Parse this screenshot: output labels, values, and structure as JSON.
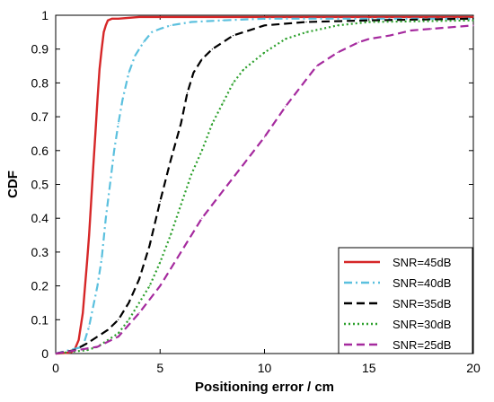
{
  "chart_data": {
    "type": "line",
    "title": "",
    "xlabel": "Positioning error / cm",
    "ylabel": "CDF",
    "xlim": [
      0,
      20
    ],
    "ylim": [
      0,
      1
    ],
    "xticks": [
      0,
      5,
      10,
      15,
      20
    ],
    "yticks": [
      0,
      0.1,
      0.2,
      0.3,
      0.4,
      0.5,
      0.6,
      0.7,
      0.8,
      0.9,
      1
    ],
    "grid": false,
    "legend_position": "bottom-right",
    "series": [
      {
        "name": "SNR=45dB",
        "color": "#d62728",
        "dash": "solid",
        "x": [
          0,
          0.7,
          0.9,
          1.1,
          1.3,
          1.5,
          1.6,
          1.7,
          1.8,
          1.9,
          2.0,
          2.1,
          2.2,
          2.3,
          2.4,
          2.5,
          2.7,
          3.0,
          4.0,
          5.0,
          20
        ],
        "y": [
          0,
          0.003,
          0.01,
          0.04,
          0.12,
          0.27,
          0.35,
          0.45,
          0.55,
          0.65,
          0.75,
          0.84,
          0.9,
          0.95,
          0.97,
          0.985,
          0.99,
          0.99,
          0.995,
          0.995,
          0.995
        ]
      },
      {
        "name": "SNR=40dB",
        "color": "#5bc0de",
        "dash": "dashdot",
        "x": [
          0,
          1.3,
          1.6,
          2.0,
          2.2,
          2.4,
          2.6,
          2.8,
          3.0,
          3.2,
          3.5,
          3.8,
          4.2,
          4.6,
          5.0,
          5.5,
          6.5,
          8.0,
          10.0,
          15.0,
          20
        ],
        "y": [
          0,
          0.02,
          0.08,
          0.2,
          0.28,
          0.4,
          0.5,
          0.6,
          0.68,
          0.75,
          0.83,
          0.88,
          0.92,
          0.95,
          0.96,
          0.97,
          0.98,
          0.985,
          0.99,
          0.99,
          0.99
        ]
      },
      {
        "name": "SNR=35dB",
        "color": "#000000",
        "dash": "dash",
        "x": [
          0,
          0.9,
          1.5,
          2.5,
          3.0,
          3.5,
          4.0,
          4.5,
          5.0,
          5.5,
          6.0,
          6.3,
          6.6,
          7.0,
          7.5,
          8.5,
          10.0,
          12.0,
          15.0,
          20
        ],
        "y": [
          0,
          0.01,
          0.03,
          0.07,
          0.1,
          0.15,
          0.22,
          0.32,
          0.45,
          0.57,
          0.68,
          0.77,
          0.83,
          0.87,
          0.9,
          0.94,
          0.97,
          0.98,
          0.985,
          0.99
        ]
      },
      {
        "name": "SNR=30dB",
        "color": "#2ca02c",
        "dash": "dot",
        "x": [
          0,
          1.5,
          2.0,
          3.0,
          3.5,
          4.0,
          4.5,
          5.0,
          5.5,
          6.0,
          6.5,
          7.0,
          7.5,
          8.0,
          8.5,
          9.0,
          10.0,
          11.0,
          12.0,
          13.5,
          15.0,
          20
        ],
        "y": [
          0,
          0.01,
          0.02,
          0.06,
          0.1,
          0.15,
          0.2,
          0.27,
          0.35,
          0.44,
          0.53,
          0.6,
          0.68,
          0.74,
          0.8,
          0.84,
          0.89,
          0.93,
          0.95,
          0.97,
          0.98,
          0.985
        ]
      },
      {
        "name": "SNR=25dB",
        "color": "#a52a9e",
        "dash": "dash",
        "x": [
          0,
          2.0,
          3.0,
          4.0,
          5.0,
          6.0,
          7.0,
          8.0,
          9.0,
          10.0,
          11.0,
          12.0,
          12.5,
          13.5,
          14.5,
          15.0,
          16.0,
          17.0,
          18.0,
          19.0,
          20
        ],
        "y": [
          0,
          0.02,
          0.05,
          0.12,
          0.2,
          0.3,
          0.4,
          0.48,
          0.56,
          0.64,
          0.73,
          0.81,
          0.85,
          0.89,
          0.92,
          0.93,
          0.94,
          0.955,
          0.96,
          0.965,
          0.97
        ]
      }
    ]
  }
}
